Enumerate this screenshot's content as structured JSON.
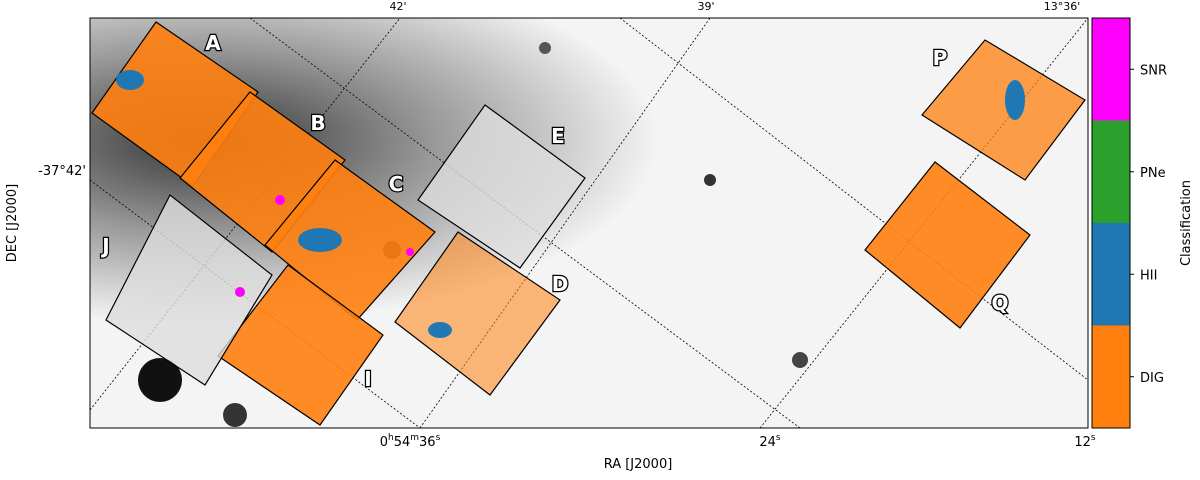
{
  "axes": {
    "x_label": "RA [J2000]",
    "y_label": "DEC [J2000]",
    "top_ticks": [
      "42'",
      "39'",
      "13°36'"
    ],
    "left_ticks": [
      "-37°42'"
    ],
    "bottom_ticks": [
      [
        "0",
        "h",
        "54",
        "m",
        "36",
        "s"
      ],
      [
        "24",
        "s"
      ],
      [
        "12",
        "s"
      ]
    ]
  },
  "panels": [
    "A",
    "B",
    "C",
    "D",
    "E",
    "I",
    "J",
    "P",
    "Q"
  ],
  "colorbar": {
    "title": "Classification",
    "classes": [
      {
        "label": "SNR",
        "color": "#ff00ff"
      },
      {
        "label": "PNe",
        "color": "#2ca02c"
      },
      {
        "label": "HII",
        "color": "#1f77b4"
      },
      {
        "label": "DIG",
        "color": "#ff7f0e"
      }
    ]
  }
}
